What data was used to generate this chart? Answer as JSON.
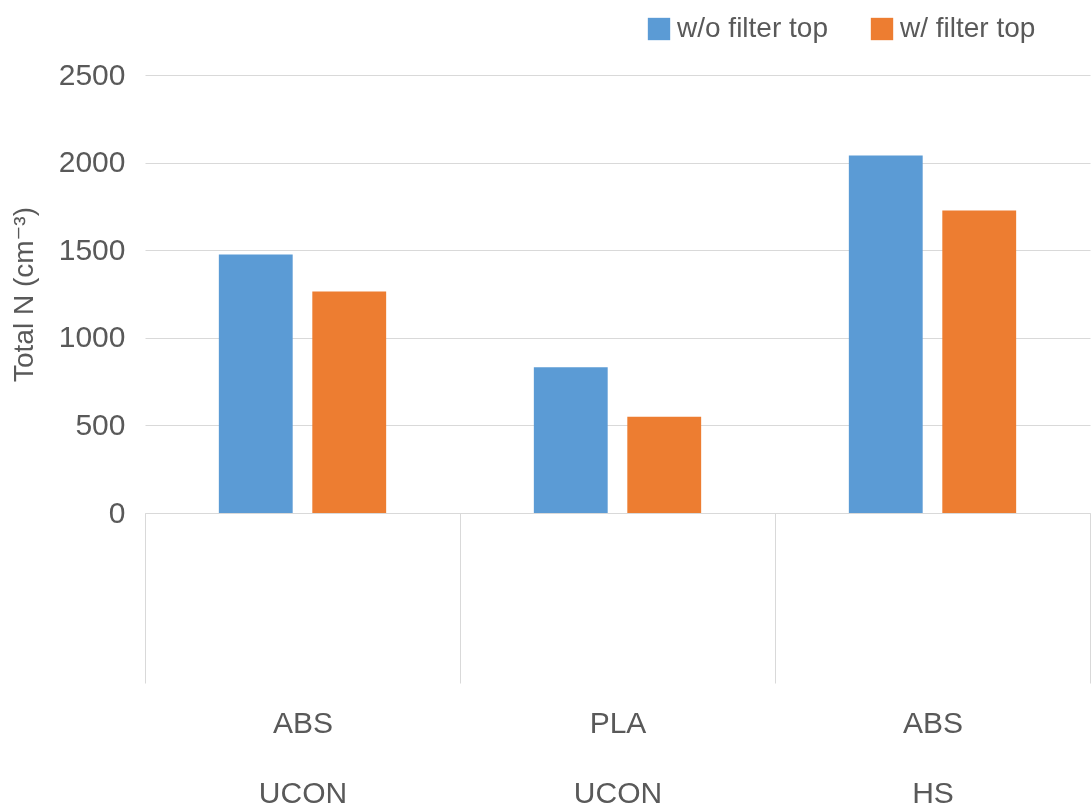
{
  "chart_data": {
    "type": "bar",
    "ylabel": "Total N (cm⁻³)",
    "categories": [
      "ABS\nUCON",
      "PLA\nUCON",
      "ABS\nHS"
    ],
    "series": [
      {
        "name": "w/o filter top",
        "color": "#5b9bd5",
        "values": [
          1475,
          832,
          2041
        ]
      },
      {
        "name": "w/ filter top",
        "color": "#ed7d31",
        "values": [
          1264,
          549,
          1727
        ]
      }
    ],
    "ylim": [
      0,
      2500
    ],
    "yticks": [
      0,
      500,
      1000,
      1500,
      2000,
      2500
    ],
    "grid": "y",
    "legend": "top right"
  }
}
